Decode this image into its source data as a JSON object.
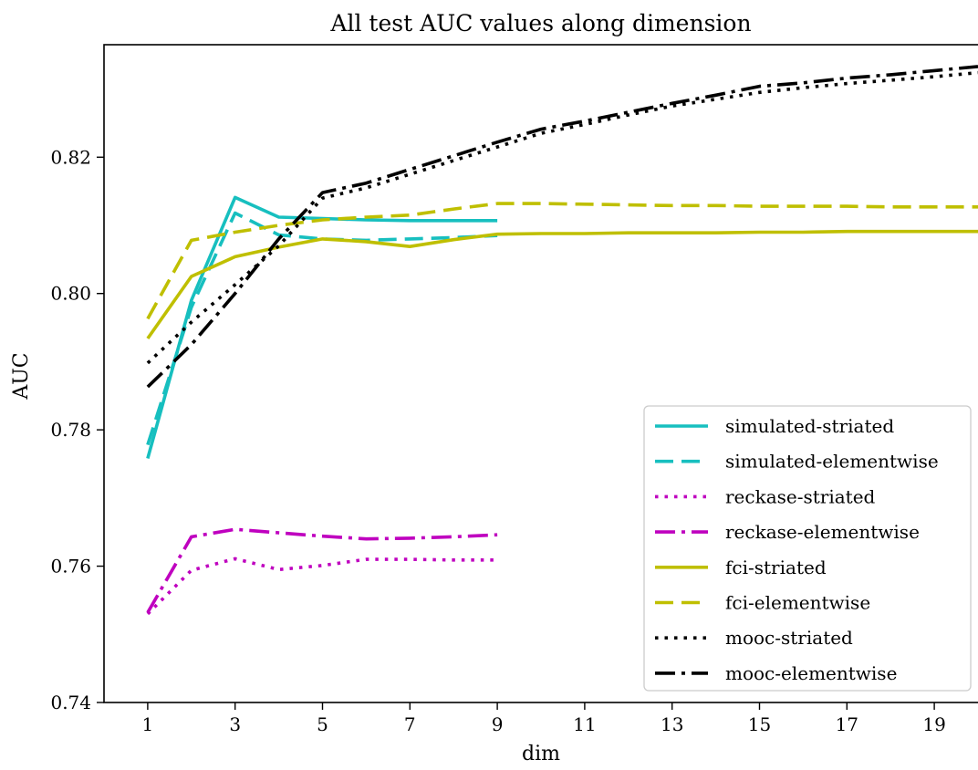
{
  "chart_data": {
    "type": "line",
    "title": "All test AUC values along dimension",
    "xlabel": "dim",
    "ylabel": "AUC",
    "xlim": [
      0,
      20
    ],
    "ylim": [
      0.74,
      0.8365
    ],
    "xticks": [
      1,
      3,
      5,
      7,
      9,
      11,
      13,
      15,
      17,
      19
    ],
    "xtick_labels": [
      "1",
      "3",
      "5",
      "7",
      "9",
      "11",
      "13",
      "15",
      "17",
      "19"
    ],
    "yticks": [
      0.74,
      0.76,
      0.78,
      0.8,
      0.82
    ],
    "ytick_labels": [
      "0.74",
      "0.76",
      "0.78",
      "0.80",
      "0.82"
    ],
    "grid": false,
    "legend_position": "lower-right",
    "series": [
      {
        "name": "simulated-striated",
        "color": "#17bfbf",
        "style": "solid",
        "x": [
          1,
          2,
          3,
          4,
          5,
          6,
          7,
          8,
          9
        ],
        "y": [
          0.7758,
          0.799,
          0.8141,
          0.8112,
          0.811,
          0.8108,
          0.8107,
          0.8107,
          0.8107
        ]
      },
      {
        "name": "simulated-elementwise",
        "color": "#17bfbf",
        "style": "dashed",
        "x": [
          1,
          2,
          3,
          4,
          5,
          6,
          7,
          8,
          9
        ],
        "y": [
          0.7778,
          0.798,
          0.8118,
          0.8086,
          0.808,
          0.8078,
          0.808,
          0.8082,
          0.8085
        ]
      },
      {
        "name": "reckase-striated",
        "color": "#bf00bf",
        "style": "dotted",
        "x": [
          1,
          2,
          3,
          4,
          5,
          6,
          7,
          8,
          9
        ],
        "y": [
          0.753,
          0.7594,
          0.7611,
          0.7595,
          0.7601,
          0.761,
          0.761,
          0.7609,
          0.7609
        ]
      },
      {
        "name": "reckase-elementwise",
        "color": "#bf00bf",
        "style": "dashdot",
        "x": [
          1,
          2,
          3,
          4,
          5,
          6,
          7,
          8,
          9
        ],
        "y": [
          0.7532,
          0.7643,
          0.7654,
          0.7649,
          0.7644,
          0.764,
          0.7641,
          0.7643,
          0.7646
        ]
      },
      {
        "name": "fci-striated",
        "color": "#bfbf00",
        "style": "solid",
        "x": [
          1,
          2,
          3,
          4,
          5,
          6,
          7,
          8,
          9,
          10,
          11,
          12,
          13,
          14,
          15,
          16,
          17,
          18,
          19,
          20
        ],
        "y": [
          0.7934,
          0.8025,
          0.8054,
          0.8068,
          0.808,
          0.8076,
          0.8069,
          0.8079,
          0.8087,
          0.8088,
          0.8088,
          0.8089,
          0.8089,
          0.8089,
          0.809,
          0.809,
          0.8091,
          0.8091,
          0.8091,
          0.8091
        ]
      },
      {
        "name": "fci-elementwise",
        "color": "#bfbf00",
        "style": "dashed",
        "x": [
          1,
          2,
          3,
          4,
          5,
          6,
          7,
          8,
          9,
          10,
          11,
          12,
          13,
          14,
          15,
          16,
          17,
          18,
          19,
          20
        ],
        "y": [
          0.7963,
          0.8078,
          0.809,
          0.81,
          0.8108,
          0.8112,
          0.8115,
          0.8124,
          0.8132,
          0.8132,
          0.8131,
          0.813,
          0.8129,
          0.8129,
          0.8128,
          0.8128,
          0.8128,
          0.8127,
          0.8127,
          0.8127
        ]
      },
      {
        "name": "mooc-striated",
        "color": "#000000",
        "style": "dotted",
        "x": [
          1,
          2,
          3,
          4,
          5,
          6,
          7,
          8,
          9,
          10,
          11,
          12,
          13,
          14,
          15,
          16,
          17,
          18,
          19,
          20
        ],
        "y": [
          0.7898,
          0.7958,
          0.8013,
          0.807,
          0.814,
          0.8155,
          0.8175,
          0.8195,
          0.8215,
          0.8235,
          0.8248,
          0.8262,
          0.8275,
          0.8285,
          0.8295,
          0.8302,
          0.8308,
          0.8313,
          0.8318,
          0.8324
        ]
      },
      {
        "name": "mooc-elementwise",
        "color": "#000000",
        "style": "dashdot",
        "x": [
          1,
          2,
          3,
          4,
          5,
          6,
          7,
          8,
          9,
          10,
          11,
          12,
          13,
          14,
          15,
          16,
          17,
          18,
          19,
          20
        ],
        "y": [
          0.7863,
          0.7925,
          0.8,
          0.808,
          0.8148,
          0.8162,
          0.8182,
          0.8202,
          0.8222,
          0.8241,
          0.8253,
          0.8266,
          0.8279,
          0.8291,
          0.8304,
          0.8309,
          0.8316,
          0.8321,
          0.8327,
          0.8333
        ]
      }
    ]
  }
}
